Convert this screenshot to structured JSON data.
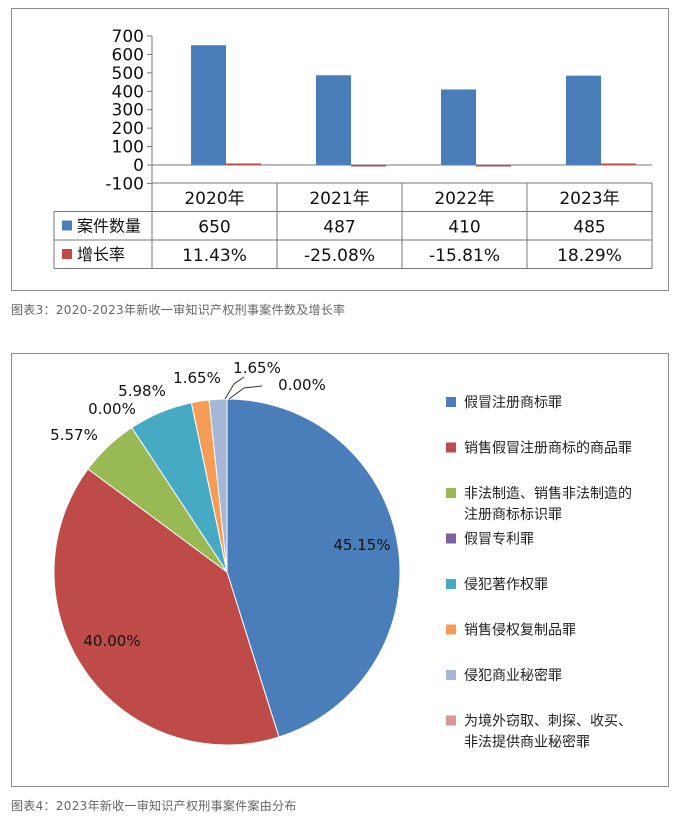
{
  "charts": [
    {
      "type": "bar",
      "categories": [
        "2020年",
        "2021年",
        "2022年",
        "2023年"
      ],
      "yticks": [
        "700",
        "600",
        "500",
        "400",
        "300",
        "200",
        "100",
        "0",
        "-100"
      ],
      "ylim": [
        -100,
        700
      ],
      "series": [
        {
          "name": "案件数量",
          "color": "#4a7ebb",
          "values": [
            650,
            487,
            410,
            485
          ],
          "labels": [
            "650",
            "487",
            "410",
            "485"
          ]
        },
        {
          "name": "增长率",
          "color": "#be4b48",
          "values": [
            11.43,
            -25.08,
            -15.81,
            18.29
          ],
          "labels": [
            "11.43%",
            "-25.08%",
            "-15.81%",
            "18.29%"
          ]
        }
      ],
      "caption": "图表3：2020-2023年新收一审知识产权刑事案件数及增长率"
    },
    {
      "type": "pie",
      "slices": [
        {
          "name": "假冒注册商标罪",
          "value": 45.15,
          "label": "45.15%",
          "color": "#4a7ebb"
        },
        {
          "name": "销售假冒注册商标的商品罪",
          "value": 40.0,
          "label": "40.00%",
          "color": "#be4b48"
        },
        {
          "name": "非法制造、销售非法制造的注册商标标识罪",
          "value": 5.57,
          "label": "5.57%",
          "color": "#98b954"
        },
        {
          "name": "假冒专利罪",
          "value": 0.0,
          "label": "0.00%",
          "color": "#7d60a0"
        },
        {
          "name": "侵犯著作权罪",
          "value": 5.98,
          "label": "5.98%",
          "color": "#46aac5"
        },
        {
          "name": "销售侵权复制品罪",
          "value": 1.65,
          "label": "1.65%",
          "color": "#f59d56"
        },
        {
          "name": "侵犯商业秘密罪",
          "value": 1.65,
          "label": "1.65%",
          "color": "#a5b6d9"
        },
        {
          "name": "为境外窃取、刺探、收买、非法提供商业秘密罪",
          "value": 0.0,
          "label": "0.00%",
          "color": "#d99694"
        }
      ],
      "legend_lines": [
        [
          "假冒注册商标罪"
        ],
        [
          "销售假冒注册商标的商品罪"
        ],
        [
          "非法制造、销售非法制造的",
          "注册商标标识罪"
        ],
        [
          "假冒专利罪"
        ],
        [
          "侵犯著作权罪"
        ],
        [
          "销售侵权复制品罪"
        ],
        [
          "侵犯商业秘密罪"
        ],
        [
          "为境外窃取、刺探、收买、",
          "非法提供商业秘密罪"
        ]
      ],
      "caption": "图表4：2023年新收一审知识产权刑事案件案由分布"
    }
  ]
}
